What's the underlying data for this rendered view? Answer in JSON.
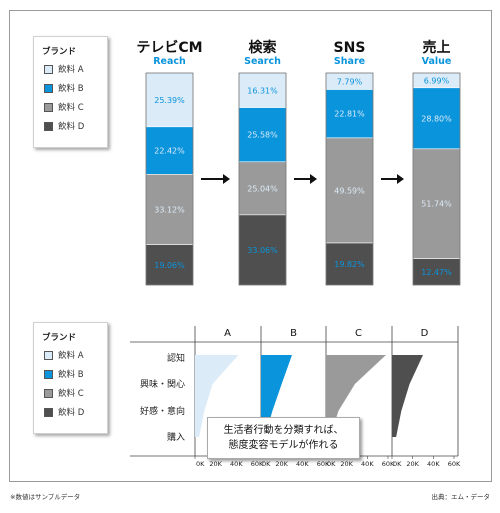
{
  "legend_title": "ブランド",
  "legend_items": [
    {
      "label": "飲料 A",
      "color": "#dcebf8"
    },
    {
      "label": "飲料 B",
      "color": "#0a94dc"
    },
    {
      "label": "飲料 C",
      "color": "#9a9a9a"
    },
    {
      "label": "飲料 D",
      "color": "#4f4f4f"
    }
  ],
  "callout": {
    "line1": "生活者行動を分類すれば、",
    "line2": "態度変容モデルが作れる"
  },
  "footer": {
    "note": "※数値はサンプルデータ",
    "source": "出典：エム・データ"
  },
  "chart_data": [
    {
      "type": "bar",
      "stacked": true,
      "stack_order": [
        "飲料 A",
        "飲料 B",
        "飲料 C",
        "飲料 D"
      ],
      "categories": [
        {
          "title": "テレビCM",
          "subtitle": "Reach"
        },
        {
          "title": "検索",
          "subtitle": "Search"
        },
        {
          "title": "SNS",
          "subtitle": "Share"
        },
        {
          "title": "売上",
          "subtitle": "Value"
        }
      ],
      "series": [
        {
          "name": "飲料 A",
          "values": [
            "25.39%",
            "16.31%",
            "7.79%",
            "6.99%"
          ]
        },
        {
          "name": "飲料 B",
          "values": [
            "22.42%",
            "25.58%",
            "22.81%",
            "28.80%"
          ]
        },
        {
          "name": "飲料 C",
          "values": [
            "33.12%",
            "25.04%",
            "49.59%",
            "51.74%"
          ]
        },
        {
          "name": "飲料 D",
          "values": [
            "19.06%",
            "33.06%",
            "19.82%",
            "12.47%"
          ]
        }
      ]
    },
    {
      "type": "area",
      "orientation": "horizontal",
      "panels": [
        "A",
        "B",
        "C",
        "D"
      ],
      "stages": [
        "認知",
        "興味・関心",
        "好感・意向",
        "購入"
      ],
      "xticks": [
        "0K",
        "20K",
        "40K",
        "60K"
      ],
      "xlim": [
        0,
        60000
      ],
      "series": [
        {
          "name": "A",
          "color": "#dcebf8",
          "values": [
            42000,
            17000,
            9000,
            4000
          ]
        },
        {
          "name": "B",
          "color": "#0a94dc",
          "values": [
            30000,
            20000,
            11000,
            4000
          ]
        },
        {
          "name": "C",
          "color": "#9a9a9a",
          "values": [
            58000,
            28000,
            12000,
            4000
          ]
        },
        {
          "name": "D",
          "color": "#4f4f4f",
          "values": [
            30000,
            17000,
            9000,
            4000
          ]
        }
      ]
    }
  ]
}
